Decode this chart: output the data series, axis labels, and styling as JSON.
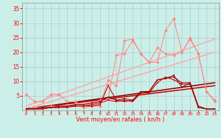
{
  "bg_color": "#cceee8",
  "grid_color": "#aacccc",
  "xlabel": "Vent moyen/en rafales ( kn/h )",
  "x_ticks": [
    0,
    1,
    2,
    3,
    4,
    5,
    6,
    7,
    8,
    9,
    10,
    11,
    12,
    13,
    14,
    15,
    16,
    17,
    18,
    19,
    20,
    21,
    22,
    23
  ],
  "ylim": [
    0,
    37
  ],
  "yticks": [
    5,
    10,
    15,
    20,
    25,
    30,
    35
  ],
  "xlim": [
    -0.5,
    23.5
  ],
  "line_light1": {
    "x": [
      0,
      1,
      2,
      3,
      4,
      5,
      6,
      7,
      8,
      9,
      10,
      11,
      12,
      13,
      14,
      15,
      16,
      17,
      18,
      19,
      20,
      21,
      22,
      23
    ],
    "y": [
      5.5,
      3.0,
      3.0,
      5.5,
      5.5,
      3.0,
      3.0,
      1.0,
      1.5,
      1.5,
      10.5,
      8.5,
      24.0,
      24.5,
      19.5,
      16.5,
      16.5,
      27.5,
      31.5,
      20.0,
      24.5,
      19.5,
      6.5,
      3.0
    ],
    "color": "#ff8888",
    "marker": "D",
    "markersize": 2.5,
    "linewidth": 0.8
  },
  "line_light2": {
    "x": [
      0,
      1,
      2,
      3,
      4,
      5,
      6,
      7,
      8,
      9,
      10,
      11,
      12,
      13,
      14,
      15,
      16,
      17,
      18,
      19,
      20,
      21,
      22,
      23
    ],
    "y": [
      0.5,
      1.0,
      1.0,
      1.5,
      1.5,
      1.5,
      2.0,
      2.5,
      2.5,
      3.5,
      4.0,
      19.0,
      19.5,
      24.0,
      19.5,
      16.5,
      21.5,
      19.5,
      19.0,
      20.0,
      25.0,
      19.5,
      6.5,
      3.5
    ],
    "color": "#ff8888",
    "marker": "D",
    "markersize": 2.5,
    "linewidth": 0.8
  },
  "trend_light1": {
    "x": [
      0,
      23
    ],
    "y": [
      0.5,
      20.0
    ],
    "color": "#ffaaaa",
    "linewidth": 1.2
  },
  "trend_light2": {
    "x": [
      0,
      23
    ],
    "y": [
      1.5,
      24.5
    ],
    "color": "#ffaaaa",
    "linewidth": 1.2
  },
  "line_dark1": {
    "x": [
      0,
      1,
      2,
      3,
      4,
      5,
      6,
      7,
      8,
      9,
      10,
      11,
      12,
      13,
      14,
      15,
      16,
      17,
      18,
      19,
      20,
      21,
      22,
      23
    ],
    "y": [
      0.5,
      0.5,
      0.5,
      1.0,
      1.0,
      1.0,
      1.5,
      1.5,
      1.5,
      2.0,
      8.5,
      3.5,
      3.0,
      3.5,
      6.5,
      6.5,
      10.5,
      11.0,
      11.5,
      9.5,
      9.5,
      1.0,
      0.5,
      0.5
    ],
    "color": "#cc0000",
    "marker": "s",
    "markersize": 2.0,
    "linewidth": 0.8
  },
  "line_dark2": {
    "x": [
      0,
      1,
      2,
      3,
      4,
      5,
      6,
      7,
      8,
      9,
      10,
      11,
      12,
      13,
      14,
      15,
      16,
      17,
      18,
      19,
      20,
      21,
      22,
      23
    ],
    "y": [
      0.5,
      0.5,
      0.5,
      1.0,
      1.0,
      1.5,
      1.5,
      1.5,
      2.0,
      2.5,
      3.5,
      3.0,
      3.5,
      3.0,
      6.0,
      6.0,
      9.5,
      11.5,
      10.5,
      9.0,
      9.0,
      1.0,
      0.5,
      0.5
    ],
    "color": "#cc0000",
    "marker": "s",
    "markersize": 2.0,
    "linewidth": 0.8
  },
  "line_dark3": {
    "x": [
      0,
      1,
      2,
      3,
      4,
      5,
      6,
      7,
      8,
      9,
      10,
      11,
      12,
      13,
      14,
      15,
      16,
      17,
      18,
      19,
      20,
      21,
      22,
      23
    ],
    "y": [
      0.5,
      0.5,
      1.0,
      1.0,
      1.5,
      1.5,
      2.0,
      2.0,
      2.5,
      3.0,
      4.5,
      3.5,
      4.0,
      3.5,
      6.5,
      6.5,
      10.5,
      11.0,
      12.0,
      8.0,
      9.5,
      1.5,
      0.5,
      0.5
    ],
    "color": "#880000",
    "marker": "s",
    "markersize": 2.0,
    "linewidth": 0.8
  },
  "trend_dark1": {
    "x": [
      0,
      23
    ],
    "y": [
      0.5,
      8.5
    ],
    "color": "#cc0000",
    "linewidth": 1.2
  },
  "trend_dark2": {
    "x": [
      0,
      23
    ],
    "y": [
      0.5,
      9.5
    ],
    "color": "#880000",
    "linewidth": 1.2
  }
}
